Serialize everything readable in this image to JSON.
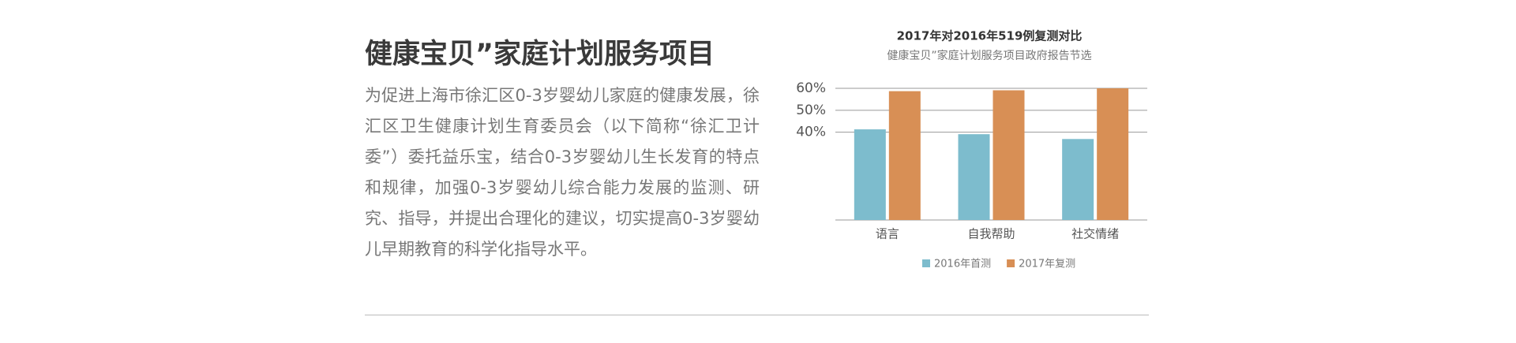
{
  "article": {
    "title": "健康宝贝”家庭计划服务项目",
    "body": "为促进上海市徐汇区0-3岁婴幼儿家庭的健康发展，徐汇区卫生健康计划生育委员会（以下简称“徐汇卫计委”）委托益乐宝，结合0-3岁婴幼儿生长发育的特点和规律，加强0-3岁婴幼儿综合能力发展的监测、研究、指导，并提出合理化的建议，切实提高0-3岁婴幼儿早期教育的科学化指导水平。"
  },
  "chart_data": {
    "type": "bar",
    "title": "2017年对2016年519例复测对比",
    "subtitle": "健康宝贝”家庭计划服务项目政府报告节选",
    "categories": [
      "语言",
      "自我帮助",
      "社交情绪"
    ],
    "series": [
      {
        "name": "2016年首测",
        "color": "#7dbccd",
        "values": [
          41.3,
          39.1,
          36.9
        ]
      },
      {
        "name": "2017年复测",
        "color": "#d88f55",
        "values": [
          58.7,
          59.1,
          60
        ]
      }
    ],
    "ylim": [
      0,
      60
    ],
    "yticks": [
      {
        "value": 40,
        "label": "40%"
      },
      {
        "value": 50,
        "label": "50%"
      },
      {
        "value": 60,
        "label": "60%"
      }
    ],
    "grid": true,
    "legend": "bottom"
  }
}
